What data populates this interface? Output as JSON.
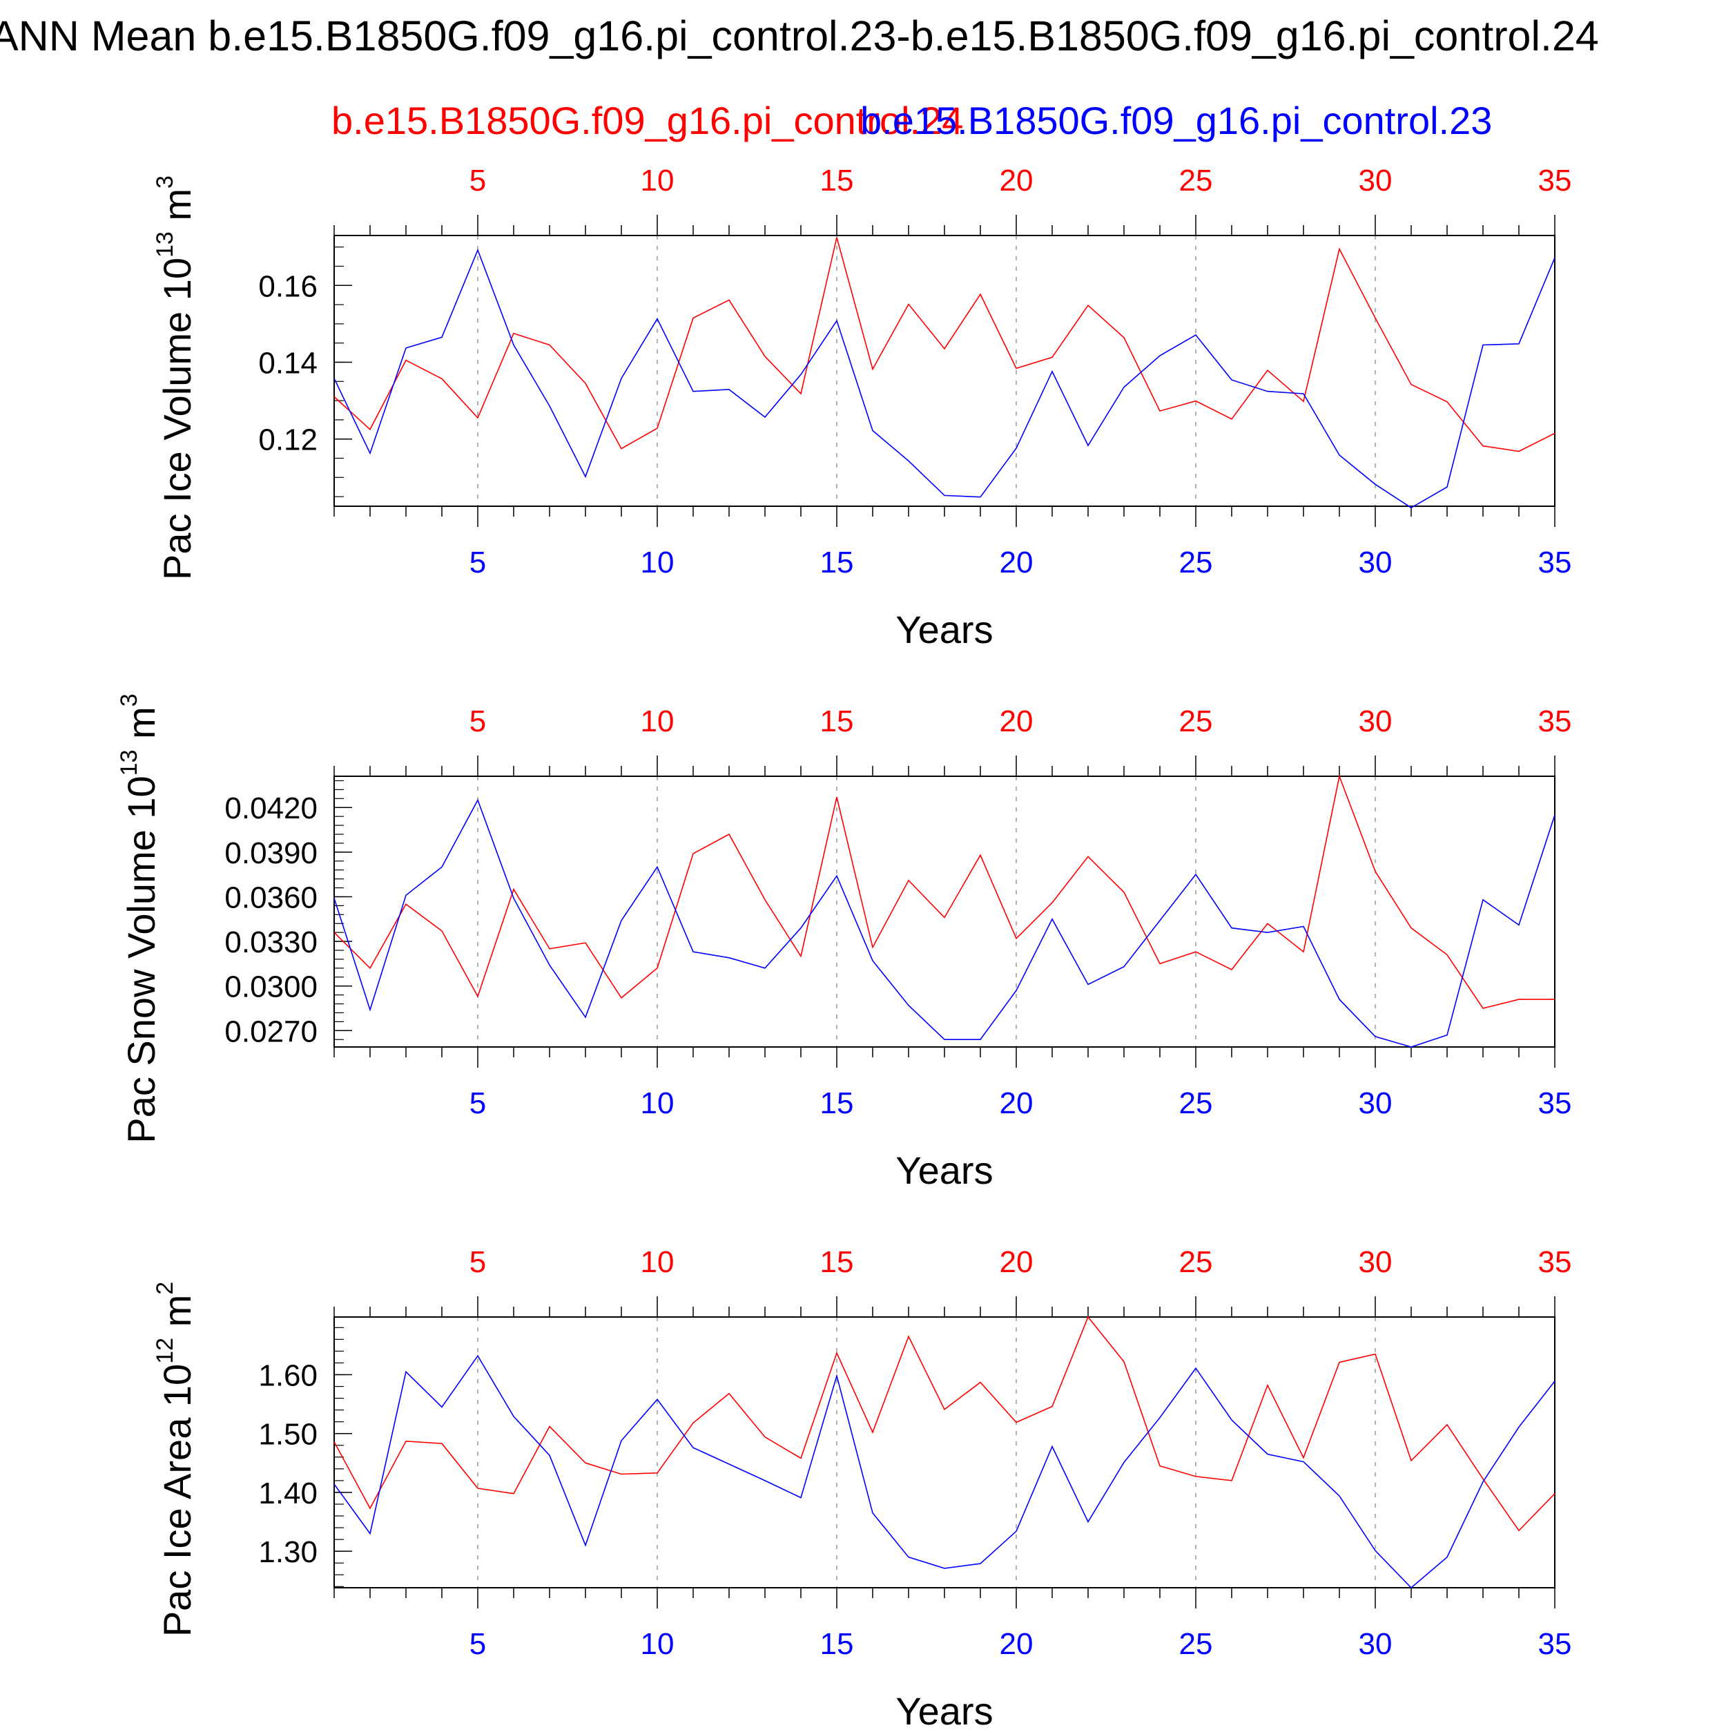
{
  "title": "ANN Mean b.e15.B1850G.f09_g16.pi_control.23-b.e15.B1850G.f09_g16.pi_control.24",
  "subtitle": {
    "red_case": "b.e15.B1850G.f09_g16.pi_control.24",
    "blue_case": "b.e15.B1850G.f09_g16.pi_control.23"
  },
  "colors": {
    "red": "#ff0000",
    "blue": "#0000ff",
    "grid": "#999999",
    "axis": "#000000"
  },
  "chart_data": [
    {
      "type": "line",
      "ylabel_main": "Pac Ice Volume 10",
      "ylabel_exp": "13",
      "ylabel_unit": " m",
      "ylabel_unit_exp": "3",
      "xlabel": "Years",
      "xlim": [
        1,
        35
      ],
      "ylim": [
        0.1025,
        0.173
      ],
      "x_ticks": [
        5,
        10,
        15,
        20,
        25,
        30,
        35
      ],
      "y_ticks": [
        0.12,
        0.14,
        0.16
      ],
      "y_tick_labels": [
        "0.12",
        "0.14",
        "0.16"
      ],
      "y_minor_step": 0.005,
      "x": [
        1,
        2,
        3,
        4,
        5,
        6,
        7,
        8,
        9,
        10,
        11,
        12,
        13,
        14,
        15,
        16,
        17,
        18,
        19,
        20,
        21,
        22,
        23,
        24,
        25,
        26,
        27,
        28,
        29,
        30,
        31,
        32,
        33,
        34,
        35
      ],
      "series": [
        {
          "name": "b.e15.B1850G.f09_g16.pi_control.24",
          "color": "red",
          "values": [
            0.131,
            0.1225,
            0.1405,
            0.1357,
            0.1255,
            0.1475,
            0.1445,
            0.1345,
            0.1175,
            0.1228,
            0.1515,
            0.1562,
            0.1415,
            0.1318,
            0.1725,
            0.1382,
            0.1551,
            0.1435,
            0.1577,
            0.1384,
            0.1413,
            0.1548,
            0.1464,
            0.1273,
            0.1299,
            0.1252,
            0.1379,
            0.1298,
            0.1695,
            0.1515,
            0.1342,
            0.1297,
            0.1182,
            0.1168,
            0.1215
          ]
        },
        {
          "name": "b.e15.B1850G.f09_g16.pi_control.23",
          "color": "blue",
          "values": [
            0.1358,
            0.1163,
            0.1437,
            0.1465,
            0.1692,
            0.1445,
            0.1286,
            0.1102,
            0.1358,
            0.1513,
            0.1324,
            0.1329,
            0.1257,
            0.1368,
            0.1508,
            0.1222,
            0.1143,
            0.1053,
            0.1049,
            0.1176,
            0.1376,
            0.1183,
            0.1335,
            0.1417,
            0.1471,
            0.1354,
            0.1324,
            0.1318,
            0.1158,
            0.1082,
            0.1021,
            0.1075,
            0.1445,
            0.1448,
            0.1672
          ]
        }
      ]
    },
    {
      "type": "line",
      "ylabel_main": "Pac Snow Volume 10",
      "ylabel_exp": "13",
      "ylabel_unit": " m",
      "ylabel_unit_exp": "3",
      "xlabel": "Years",
      "xlim": [
        1,
        35
      ],
      "ylim": [
        0.0259,
        0.0441
      ],
      "x_ticks": [
        5,
        10,
        15,
        20,
        25,
        30,
        35
      ],
      "y_ticks": [
        0.027,
        0.03,
        0.033,
        0.036,
        0.039,
        0.042
      ],
      "y_tick_labels": [
        "0.0270",
        "0.0300",
        "0.0330",
        "0.0360",
        "0.0390",
        "0.0420"
      ],
      "y_minor_step": 0.0006,
      "x": [
        1,
        2,
        3,
        4,
        5,
        6,
        7,
        8,
        9,
        10,
        11,
        12,
        13,
        14,
        15,
        16,
        17,
        18,
        19,
        20,
        21,
        22,
        23,
        24,
        25,
        26,
        27,
        28,
        29,
        30,
        31,
        32,
        33,
        34,
        35
      ],
      "series": [
        {
          "name": "b.e15.B1850G.f09_g16.pi_control.24",
          "color": "red",
          "values": [
            0.0336,
            0.0312,
            0.0355,
            0.0337,
            0.0293,
            0.0365,
            0.0325,
            0.0329,
            0.0292,
            0.0312,
            0.0389,
            0.0402,
            0.0358,
            0.032,
            0.0427,
            0.0326,
            0.0371,
            0.0346,
            0.0388,
            0.0332,
            0.0356,
            0.0387,
            0.0363,
            0.0315,
            0.0323,
            0.0311,
            0.0342,
            0.0323,
            0.0441,
            0.0377,
            0.0339,
            0.0321,
            0.0285,
            0.0291,
            0.0291
          ]
        },
        {
          "name": "b.e15.B1850G.f09_g16.pi_control.23",
          "color": "blue",
          "values": [
            0.0359,
            0.0284,
            0.0361,
            0.038,
            0.0425,
            0.0359,
            0.0314,
            0.0279,
            0.0344,
            0.038,
            0.0323,
            0.0319,
            0.0312,
            0.0339,
            0.0374,
            0.0317,
            0.0287,
            0.0264,
            0.0264,
            0.0297,
            0.0345,
            0.0301,
            0.0313,
            0.0344,
            0.0375,
            0.0339,
            0.0336,
            0.034,
            0.0291,
            0.0266,
            0.0259,
            0.0267,
            0.0358,
            0.0341,
            0.0415
          ]
        }
      ]
    },
    {
      "type": "line",
      "ylabel_main": "Pac Ice Area 10",
      "ylabel_exp": "12",
      "ylabel_unit": " m",
      "ylabel_unit_exp": "2",
      "xlabel": "Years",
      "xlim": [
        1,
        35
      ],
      "ylim": [
        1.238,
        1.698
      ],
      "x_ticks": [
        5,
        10,
        15,
        20,
        25,
        30,
        35
      ],
      "y_ticks": [
        1.3,
        1.4,
        1.5,
        1.6
      ],
      "y_tick_labels": [
        "1.30",
        "1.40",
        "1.50",
        "1.60"
      ],
      "y_minor_step": 0.02,
      "x": [
        1,
        2,
        3,
        4,
        5,
        6,
        7,
        8,
        9,
        10,
        11,
        12,
        13,
        14,
        15,
        16,
        17,
        18,
        19,
        20,
        21,
        22,
        23,
        24,
        25,
        26,
        27,
        28,
        29,
        30,
        31,
        32,
        33,
        34,
        35
      ],
      "series": [
        {
          "name": "b.e15.B1850G.f09_g16.pi_control.24",
          "color": "red",
          "values": [
            1.486,
            1.373,
            1.487,
            1.483,
            1.407,
            1.398,
            1.512,
            1.45,
            1.431,
            1.433,
            1.518,
            1.568,
            1.494,
            1.458,
            1.637,
            1.502,
            1.665,
            1.541,
            1.587,
            1.519,
            1.546,
            1.698,
            1.622,
            1.445,
            1.427,
            1.42,
            1.582,
            1.459,
            1.621,
            1.635,
            1.454,
            1.515,
            1.423,
            1.335,
            1.398
          ]
        },
        {
          "name": "b.e15.B1850G.f09_g16.pi_control.23",
          "color": "blue",
          "values": [
            1.414,
            1.33,
            1.605,
            1.545,
            1.632,
            1.529,
            1.463,
            1.31,
            1.488,
            1.558,
            1.476,
            1.448,
            1.42,
            1.391,
            1.598,
            1.365,
            1.29,
            1.271,
            1.279,
            1.334,
            1.478,
            1.35,
            1.451,
            1.527,
            1.611,
            1.523,
            1.465,
            1.452,
            1.394,
            1.301,
            1.238,
            1.29,
            1.418,
            1.511,
            1.589
          ]
        }
      ]
    }
  ]
}
